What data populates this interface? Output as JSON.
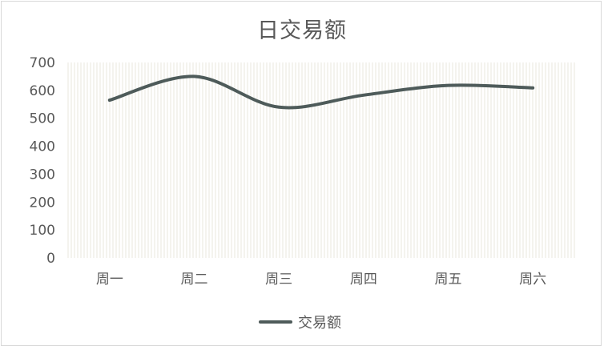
{
  "chart_data": {
    "type": "line",
    "title": "日交易额",
    "categories": [
      "周一",
      "周二",
      "周三",
      "周四",
      "周五",
      "周六"
    ],
    "series": [
      {
        "name": "交易额",
        "values": [
          565,
          650,
          540,
          583,
          618,
          609
        ]
      }
    ],
    "ylim": [
      0,
      700
    ],
    "yticks": [
      0,
      100,
      200,
      300,
      400,
      500,
      600,
      700
    ],
    "smooth": true,
    "legend": "bottom",
    "colors": {
      "line": "#4e5b5a",
      "plot_bg_stripe": "#f4f3ee",
      "text": "#595959"
    }
  }
}
